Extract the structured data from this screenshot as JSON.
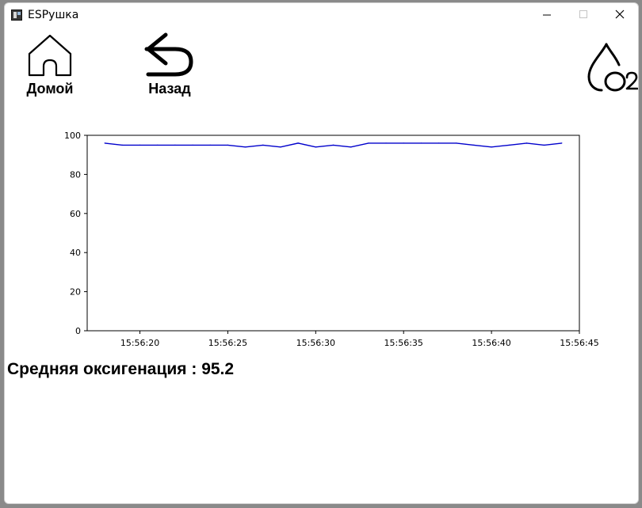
{
  "window": {
    "title": "ESPушка"
  },
  "nav": {
    "home_label": "Домой",
    "back_label": "Назад"
  },
  "icons": {
    "app": "app-icon",
    "home": "home-icon",
    "back": "back-arrow-icon",
    "o2": "o2-drop-icon",
    "minimize": "minimize-icon",
    "maximize": "maximize-icon",
    "close": "close-icon"
  },
  "chart_data": {
    "type": "line",
    "title": "",
    "xlabel": "",
    "ylabel": "",
    "ylim": [
      0,
      100
    ],
    "yticks": [
      0,
      20,
      40,
      60,
      80,
      100
    ],
    "xlim": [
      "15:56:17",
      "15:56:45"
    ],
    "xticks": [
      "15:56:20",
      "15:56:25",
      "15:56:30",
      "15:56:35",
      "15:56:40",
      "15:56:45"
    ],
    "grid": false,
    "series": [
      {
        "color": "#0000cc",
        "x": [
          "15:56:18",
          "15:56:19",
          "15:56:20",
          "15:56:21",
          "15:56:22",
          "15:56:23",
          "15:56:24",
          "15:56:25",
          "15:56:26",
          "15:56:27",
          "15:56:28",
          "15:56:29",
          "15:56:30",
          "15:56:31",
          "15:56:32",
          "15:56:33",
          "15:56:34",
          "15:56:35",
          "15:56:36",
          "15:56:37",
          "15:56:38",
          "15:56:39",
          "15:56:40",
          "15:56:41",
          "15:56:42",
          "15:56:43",
          "15:56:44"
        ],
        "values": [
          96,
          95,
          95,
          95,
          95,
          95,
          95,
          95,
          94,
          95,
          94,
          96,
          94,
          95,
          94,
          96,
          96,
          96,
          96,
          96,
          96,
          95,
          94,
          95,
          96,
          95,
          96
        ]
      }
    ]
  },
  "summary": {
    "avg_text": "Средняя оксигенация : 95.2"
  }
}
